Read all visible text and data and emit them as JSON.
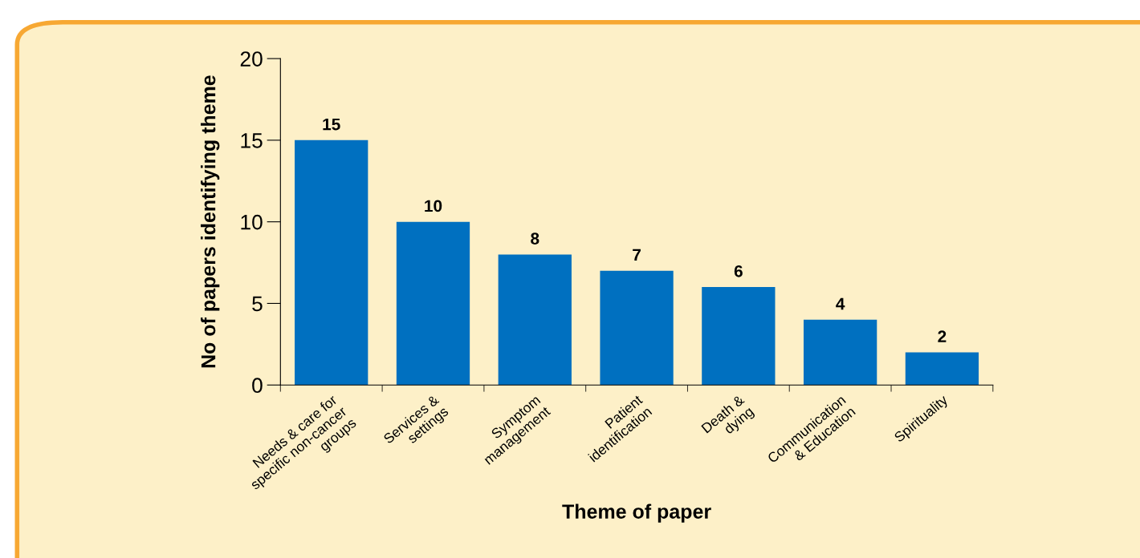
{
  "chart_data": {
    "type": "bar",
    "xlabel": "Theme of paper",
    "ylabel": "No of papers identifying theme",
    "categories": [
      "Needs & care for\nspecific non-cancer\ngroups",
      "Services &\nsettings",
      "Symptom\nmanagement",
      "Patient\nidentification",
      "Death &\ndying",
      "Communication\n& Education",
      "Spirituality"
    ],
    "values": [
      15,
      10,
      8,
      7,
      6,
      4,
      2
    ],
    "color": "#0070c0",
    "ylim": [
      0,
      20
    ],
    "yticks": [
      0,
      5,
      10,
      15,
      20
    ],
    "data_labels": true,
    "grid": false,
    "legend": false
  }
}
